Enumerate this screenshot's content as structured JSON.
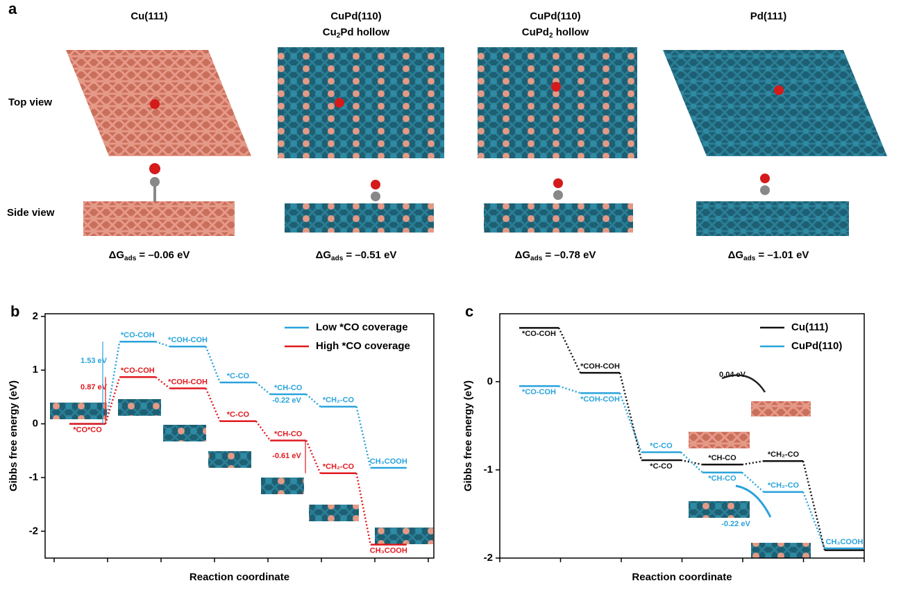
{
  "panel_a": {
    "letter": "a",
    "row_labels": [
      "Top view",
      "Side view"
    ],
    "columns": [
      {
        "title": "Cu(111)",
        "subtitle": null,
        "dg": {
          "symbol": "ΔG",
          "sub": "ads",
          "rest": " = –0.06 eV"
        }
      },
      {
        "title": "CuPd(110)",
        "subtitle": {
          "pre": "Cu",
          "sub": "2",
          "post": "Pd hollow"
        },
        "dg": {
          "symbol": "ΔG",
          "sub": "ads",
          "rest": " = –0.51 eV"
        }
      },
      {
        "title": "CuPd(110)",
        "subtitle": {
          "pre": "CuPd",
          "sub": "2",
          "post": " hollow"
        },
        "dg": {
          "symbol": "ΔG",
          "sub": "ads",
          "rest": " = –0.78 eV"
        }
      },
      {
        "title": "Pd(111)",
        "subtitle": null,
        "dg": {
          "symbol": "ΔG",
          "sub": "ads",
          "rest": " = –1.01 eV"
        }
      }
    ]
  },
  "chart_data": [
    {
      "type": "energy_diagram",
      "letter": "b",
      "xlabel": "Reaction coordinate",
      "ylabel": "Gibbs free energy (eV)",
      "ylim": [
        -2.5,
        2.05
      ],
      "yticks": [
        -2,
        -1,
        0,
        1,
        2
      ],
      "legend": "upper right",
      "series": [
        {
          "name": "Low *CO coverage",
          "color": "#29a3dc",
          "values": [
            0,
            1.53,
            1.44,
            0.77,
            0.55,
            0.32,
            -0.82
          ],
          "labels": [
            null,
            "*CO-COH",
            "*COH-COH",
            "*C-CO",
            "*CH-CO",
            "*CH₂-CO",
            "CH₃COOH"
          ]
        },
        {
          "name": "High *CO coverage",
          "color": "#e0191e",
          "values": [
            0,
            0.87,
            0.66,
            0.05,
            -0.31,
            -0.92,
            -2.25
          ],
          "labels": [
            "*CO*CO",
            "*CO-COH",
            "*COH-COH",
            "*C-CO",
            "*CH-CO",
            "*CH₂-CO",
            "CH₃COOH"
          ]
        }
      ],
      "annotations": [
        "1.53 eV",
        "0.87 eV",
        "-0.22 eV",
        "-0.61 eV"
      ]
    },
    {
      "type": "energy_diagram",
      "letter": "c",
      "xlabel": "Reaction coordinate",
      "ylabel": "Gibbs free energy (eV)",
      "ylim": [
        -2,
        0.77
      ],
      "yticks": [
        -2,
        -1,
        0
      ],
      "legend": "upper right",
      "series": [
        {
          "name": "Cu(111)",
          "color": "#111111",
          "values": [
            0.61,
            0.1,
            -0.89,
            -0.94,
            -0.9,
            -1.91
          ],
          "labels": [
            "*CO-COH",
            "*COH-COH",
            "*C-CO",
            "*CH-CO",
            "*CH₂-CO",
            null
          ]
        },
        {
          "name": "CuPd(110)",
          "color": "#29a3dc",
          "values": [
            -0.05,
            -0.13,
            -0.8,
            -1.03,
            -1.25,
            -1.89
          ],
          "labels": [
            "*CO-COH",
            "*COH-COH",
            "*C-CO",
            "*CH-CO",
            "*CH₂-CO",
            "CH₃COOH"
          ]
        }
      ],
      "annotations": [
        "0.04 eV",
        "-0.22 eV"
      ]
    }
  ]
}
